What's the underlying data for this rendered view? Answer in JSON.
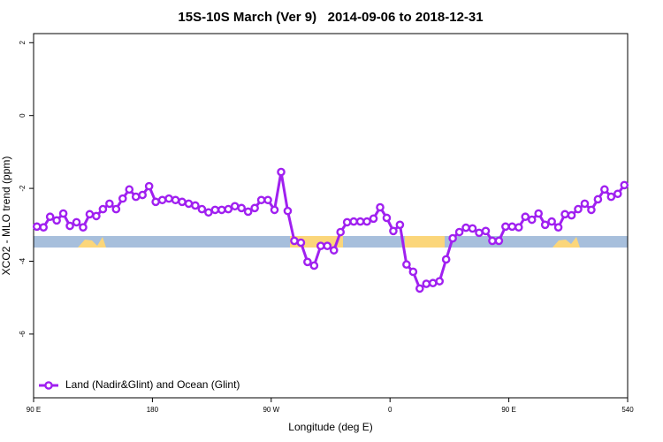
{
  "chart_data": {
    "type": "line",
    "title": "15S-10S March (Ver 9)   2014-09-06 to 2018-12-31",
    "xlabel": "Longitude (deg E)",
    "ylabel": "XCO2 - MLO trend (ppm)",
    "x": [
      92.5,
      97.5,
      102.5,
      107.5,
      112.5,
      117.5,
      122.5,
      127.5,
      132.5,
      137.5,
      142.5,
      147.5,
      152.5,
      157.5,
      162.5,
      167.5,
      172.5,
      177.5,
      182.5,
      187.5,
      192.5,
      197.5,
      202.5,
      207.5,
      212.5,
      217.5,
      222.5,
      227.5,
      232.5,
      237.5,
      242.5,
      247.5,
      252.5,
      257.5,
      262.5,
      267.5,
      272.5,
      277.5,
      282.5,
      287.5,
      292.5,
      297.5,
      302.5,
      307.5,
      312.5,
      317.5,
      322.5,
      327.5,
      332.5,
      337.5,
      342.5,
      347.5,
      352.5,
      357.5,
      362.5,
      367.5,
      372.5,
      377.5,
      382.5,
      387.5,
      392.5,
      397.5,
      402.5,
      407.5,
      412.5,
      417.5,
      422.5,
      427.5,
      432.5,
      437.5,
      442.5,
      447.5,
      452.5,
      457.5,
      462.5,
      467.5,
      472.5,
      477.5,
      482.5,
      487.5,
      492.5,
      497.5,
      502.5,
      507.5,
      512.5,
      517.5,
      522.5,
      527.5,
      532.5,
      537.5
    ],
    "series": [
      {
        "name": "Land (Nadir&Glint) and Ocean (Glint)",
        "color": "#a020f0",
        "values": [
          -3.05,
          -3.07,
          -2.78,
          -2.88,
          -2.69,
          -3.03,
          -2.93,
          -3.07,
          -2.71,
          -2.76,
          -2.57,
          -2.42,
          -2.57,
          -2.28,
          -2.03,
          -2.23,
          -2.18,
          -1.94,
          -2.37,
          -2.32,
          -2.28,
          -2.32,
          -2.37,
          -2.42,
          -2.47,
          -2.57,
          -2.66,
          -2.59,
          -2.59,
          -2.57,
          -2.49,
          -2.54,
          -2.64,
          -2.54,
          -2.32,
          -2.32,
          -2.59,
          -1.55,
          -2.62,
          -3.44,
          -3.49,
          -4.02,
          -4.12,
          -3.58,
          -3.58,
          -3.7,
          -3.2,
          -2.93,
          -2.91,
          -2.91,
          -2.91,
          -2.83,
          -2.52,
          -2.81,
          -3.17,
          -3.0,
          -4.09,
          -4.29,
          -4.75,
          -4.62,
          -4.6,
          -4.55,
          -3.95,
          -3.37,
          -3.2,
          -3.08,
          -3.1,
          -3.22,
          -3.17,
          -3.44,
          -3.44,
          -3.05,
          -3.05,
          -3.07,
          -2.78,
          -2.86,
          -2.69,
          -3.0,
          -2.91,
          -3.07,
          -2.71,
          -2.74,
          -2.57,
          -2.42,
          -2.59,
          -2.3,
          -2.03,
          -2.23,
          -2.15,
          -1.91
        ]
      }
    ],
    "xlim": [
      90,
      540
    ],
    "xticks": [
      {
        "value": 90,
        "label": "90 E"
      },
      180,
      {
        "value": 270,
        "label": "90 W"
      },
      {
        "value": 360,
        "label": "0"
      },
      {
        "value": 450,
        "label": "90 E"
      },
      540
    ],
    "ylim": [
      -7.75,
      2.25
    ],
    "yticks": [
      -6,
      -4,
      -2,
      0,
      2
    ],
    "legend": "bottom left"
  }
}
